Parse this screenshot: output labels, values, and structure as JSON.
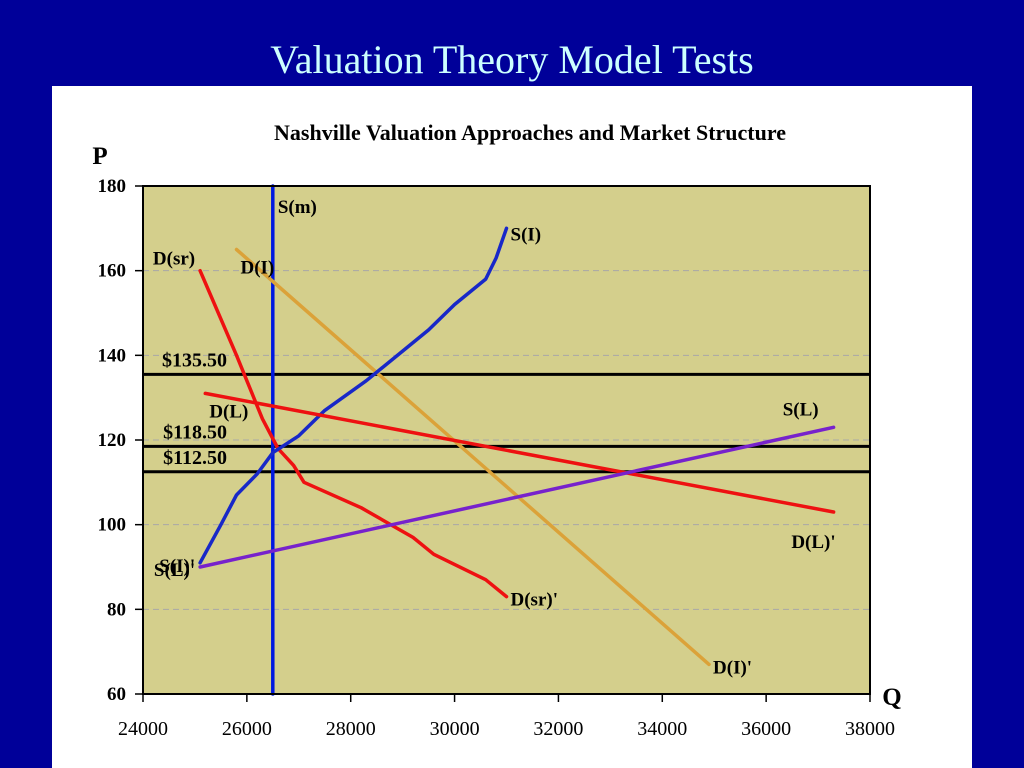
{
  "slide": {
    "title": "Valuation Theory Model Tests"
  },
  "chart_data": {
    "type": "line",
    "title": "Nashville Valuation Approaches and Market Structure",
    "ylabel": "P",
    "xlabel": "Q",
    "xlim": [
      24000,
      38000
    ],
    "ylim": [
      60,
      180
    ],
    "x_ticks": [
      "24000",
      "26000",
      "28000",
      "30000",
      "32000",
      "34000",
      "36000",
      "38000"
    ],
    "y_ticks": [
      "60",
      "80",
      "100",
      "120",
      "140",
      "160",
      "180"
    ],
    "grid": true,
    "colors": {
      "plot_bg": "#d4cf8c",
      "grid": "#a8a8a8"
    },
    "price_lines": [
      {
        "value": 135.5,
        "label": "$135.50"
      },
      {
        "value": 118.5,
        "label": "$118.50"
      },
      {
        "value": 112.5,
        "label": "$112.50"
      }
    ],
    "series": [
      {
        "color": "#0018e0",
        "points": [
          [
            26500,
            60
          ],
          [
            26500,
            180
          ]
        ],
        "labels": [
          {
            "text": "S(m)",
            "at": "end"
          }
        ]
      },
      {
        "color": "#dba239",
        "points": [
          [
            25800,
            165
          ],
          [
            34900,
            67
          ]
        ],
        "labels": [
          {
            "text": "D(I)",
            "at": "start"
          },
          {
            "text": "D(I)'",
            "at": "end"
          }
        ]
      },
      {
        "color": "#ee1111",
        "points": [
          [
            25100,
            160
          ],
          [
            25800,
            140
          ],
          [
            26300,
            125
          ],
          [
            26600,
            118
          ],
          [
            26900,
            114
          ],
          [
            27100,
            110
          ],
          [
            28200,
            104
          ],
          [
            29200,
            97
          ],
          [
            29600,
            93
          ],
          [
            30600,
            87
          ],
          [
            31000,
            83
          ]
        ],
        "labels": [
          {
            "text": "D(sr)",
            "at": "start"
          },
          {
            "text": "D(sr)'",
            "at": "end"
          }
        ]
      },
      {
        "color": "#1828c8",
        "points": [
          [
            25100,
            91
          ],
          [
            25500,
            100
          ],
          [
            25800,
            107
          ],
          [
            26200,
            112
          ],
          [
            26500,
            117
          ],
          [
            27000,
            121
          ],
          [
            27500,
            127
          ],
          [
            28300,
            134
          ],
          [
            29000,
            141
          ],
          [
            29500,
            146
          ],
          [
            30000,
            152
          ],
          [
            30600,
            158
          ],
          [
            30800,
            163
          ],
          [
            31000,
            170
          ]
        ],
        "labels": [
          {
            "text": "S(I)'",
            "at": "start"
          },
          {
            "text": "S(I)",
            "at": "end"
          }
        ]
      },
      {
        "color": "#ee1111",
        "points": [
          [
            25200,
            131
          ],
          [
            37300,
            103
          ]
        ],
        "labels": [
          {
            "text": "D(L)",
            "at": "start"
          },
          {
            "text": "D(L)'",
            "at": "end"
          }
        ]
      },
      {
        "color": "#7722cc",
        "points": [
          [
            25100,
            90
          ],
          [
            37300,
            123
          ]
        ],
        "labels": [
          {
            "text": "S(L)'",
            "at": "start"
          },
          {
            "text": "S(L)",
            "at": "end"
          }
        ]
      }
    ]
  }
}
